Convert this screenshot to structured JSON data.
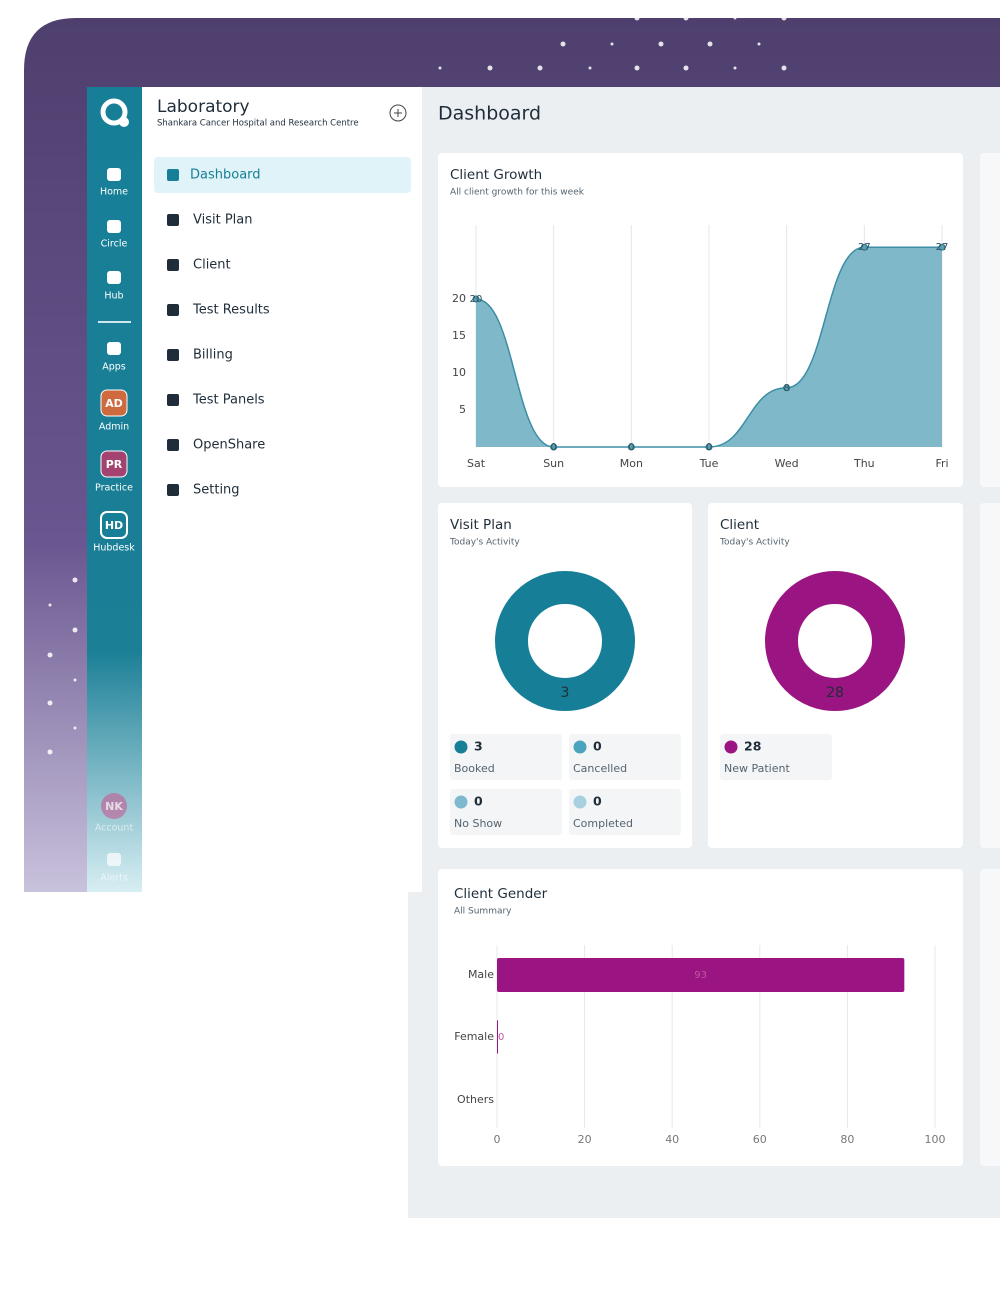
{
  "header": {
    "title": "Laboratory",
    "subtitle": "Shankara Cancer Hospital and Research Centre"
  },
  "rail": [
    {
      "label": "Home"
    },
    {
      "label": "Circle"
    },
    {
      "label": "Hub"
    },
    {
      "label": "Apps"
    },
    {
      "label": "Admin",
      "badge": "AD"
    },
    {
      "label": "Practice",
      "badge": "PR"
    },
    {
      "label": "Hubdesk",
      "badge": "HD"
    },
    {
      "label": "Account",
      "badge": "NK"
    },
    {
      "label": "Alerts"
    }
  ],
  "nav": [
    "Dashboard",
    "Visit Plan",
    "Client",
    "Test Results",
    "Billing",
    "Test Panels",
    "OpenShare",
    "Setting"
  ],
  "page_title": "Dashboard",
  "chart_data": [
    {
      "type": "area",
      "title": "Client Growth",
      "subtitle": "All client growth for this week",
      "categories": [
        "Sat",
        "Sun",
        "Mon",
        "Tue",
        "Wed",
        "Thu",
        "Fri"
      ],
      "values": [
        20,
        0,
        0,
        0,
        8,
        27,
        27
      ],
      "color": "#7fb9c9",
      "ylim": [
        0,
        30
      ],
      "yticks": [
        5,
        10,
        15,
        20
      ]
    },
    {
      "type": "donut",
      "title": "Visit Plan",
      "subtitle": "Today's Activity",
      "categories": [
        "Booked",
        "Cancelled",
        "No Show",
        "Completed"
      ],
      "values": [
        3,
        0,
        0,
        0
      ],
      "colors": [
        "#167f97",
        "#4ca3bd",
        "#7fb9d0",
        "#a8d0e0"
      ]
    },
    {
      "type": "donut",
      "title": "Client",
      "subtitle": "Today's Activity",
      "categories": [
        "New Patient"
      ],
      "values": [
        28
      ],
      "colors": [
        "#9a1581"
      ]
    },
    {
      "type": "hbar",
      "title": "Client Gender",
      "subtitle": "All Summary",
      "categories": [
        "Male",
        "Female",
        "Others"
      ],
      "values": [
        93,
        0,
        null
      ],
      "color": "#9a1581",
      "xlim": [
        0,
        100
      ],
      "xticks": [
        0,
        20,
        40,
        60,
        80,
        100
      ],
      "grid": true
    }
  ]
}
